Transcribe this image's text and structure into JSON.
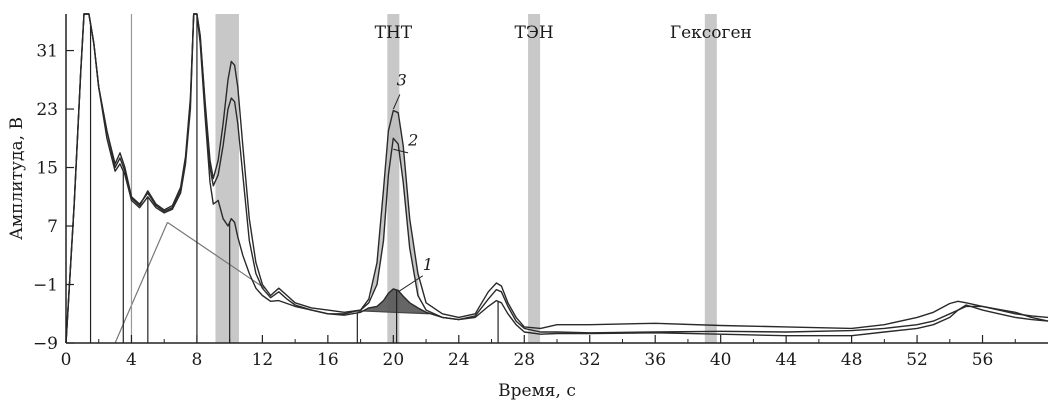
{
  "chart_data": {
    "type": "line",
    "title": "",
    "xlabel": "Время, с",
    "ylabel": "Амплитуда, В",
    "xlim": [
      0,
      60
    ],
    "ylim": [
      -9,
      36
    ],
    "x_ticks": [
      0,
      4,
      8,
      12,
      16,
      20,
      24,
      28,
      32,
      36,
      40,
      44,
      48,
      52,
      56
    ],
    "x_tick_labels": [
      "0",
      "4",
      "8",
      "12",
      "16",
      "20",
      "24",
      "28",
      "32",
      "36",
      "40",
      "44",
      "48",
      "52",
      "56"
    ],
    "y_ticks": [
      -9,
      -1,
      7,
      15,
      23,
      31
    ],
    "y_tick_labels": [
      "−9",
      "−1",
      "7",
      "15",
      "23",
      "31"
    ],
    "grid": false,
    "colors": {
      "curve": "#2a2a2a",
      "band": "#c8c8c8",
      "fill": "#bdbdbd",
      "fill_dark": "#555555",
      "marker": "#999999"
    },
    "bands": [
      {
        "label": "",
        "x": 9.5
      },
      {
        "label": "",
        "x": 10.2
      },
      {
        "label": "ТНТ",
        "x": 20.0
      },
      {
        "label": "ТЭН",
        "x": 28.6
      },
      {
        "label": "Гексоген",
        "x": 39.4
      }
    ],
    "markers_dark": [
      1.5,
      3.5,
      5.0,
      8.0,
      10.0,
      17.8,
      20.2,
      26.4
    ],
    "markers_light": [
      4.0
    ],
    "curve_labels": [
      {
        "text": "3",
        "x": 20.2,
        "y": 26.2
      },
      {
        "text": "2",
        "x": 20.9,
        "y": 18.0
      },
      {
        "text": "1",
        "x": 21.8,
        "y": 1.0
      }
    ],
    "series": [
      {
        "name": "3",
        "x": [
          0,
          0.5,
          0.9,
          1.1,
          1.4,
          1.7,
          2.0,
          2.5,
          3.0,
          3.3,
          3.6,
          4.0,
          4.5,
          5.0,
          5.5,
          6.0,
          6.5,
          7.0,
          7.3,
          7.6,
          7.8,
          8.0,
          8.2,
          8.5,
          8.8,
          9.0,
          9.3,
          9.6,
          9.9,
          10.1,
          10.3,
          10.5,
          10.8,
          11.2,
          11.6,
          12.0,
          12.5,
          13.0,
          13.5,
          14.0,
          15.0,
          16.0,
          17.0,
          18.0,
          18.5,
          19.0,
          19.4,
          19.7,
          20.0,
          20.3,
          20.6,
          21.0,
          21.5,
          22.0,
          23.0,
          24.0,
          25.0,
          25.8,
          26.3,
          26.6,
          27.0,
          27.5,
          28.0,
          29.0,
          30.0,
          32.0,
          36.0,
          40.0,
          44.0,
          48.0,
          50.0,
          52.0,
          53.0,
          54.0,
          54.5,
          55.0,
          56.0,
          57.0,
          58.0,
          59.0,
          60.0
        ],
        "y": [
          -9,
          10,
          28,
          36,
          36,
          32,
          26,
          20,
          15.5,
          17.0,
          15,
          11,
          10.0,
          11.5,
          9.8,
          9.0,
          9.5,
          12.0,
          16.0,
          24.0,
          36.0,
          36.0,
          33.0,
          24.0,
          16.0,
          13.5,
          16.0,
          21.0,
          27.0,
          29.5,
          29.0,
          26.0,
          18.0,
          8.0,
          2.0,
          -1.0,
          -2.5,
          -1.5,
          -2.5,
          -3.5,
          -4.2,
          -4.5,
          -4.8,
          -4.5,
          -3.0,
          2.0,
          12.0,
          20.0,
          22.8,
          22.5,
          18.0,
          8.0,
          0.5,
          -3.5,
          -5.0,
          -5.5,
          -5.0,
          -2.0,
          -0.8,
          -1.2,
          -3.5,
          -5.5,
          -6.8,
          -7.0,
          -6.5,
          -6.5,
          -6.3,
          -6.6,
          -6.8,
          -7.0,
          -6.5,
          -5.5,
          -4.8,
          -3.6,
          -3.3,
          -3.5,
          -4.0,
          -4.4,
          -4.8,
          -5.5,
          -6.0
        ]
      },
      {
        "name": "2",
        "x": [
          0,
          0.5,
          0.9,
          1.1,
          1.4,
          1.7,
          2.0,
          2.5,
          3.0,
          3.3,
          3.6,
          4.0,
          4.5,
          5.0,
          5.5,
          6.0,
          6.5,
          7.0,
          7.3,
          7.6,
          7.8,
          8.0,
          8.2,
          8.5,
          8.8,
          9.0,
          9.3,
          9.6,
          9.9,
          10.1,
          10.3,
          10.5,
          10.8,
          11.2,
          11.6,
          12.0,
          12.5,
          13.0,
          13.5,
          14.0,
          15.0,
          16.0,
          17.0,
          18.0,
          18.5,
          19.0,
          19.4,
          19.7,
          20.0,
          20.3,
          20.6,
          21.0,
          21.5,
          22.0,
          23.0,
          24.0,
          25.0,
          25.8,
          26.3,
          26.6,
          27.0,
          27.5,
          28.0,
          29.0,
          30.0,
          32.0,
          36.0,
          40.0,
          44.0,
          48.0,
          50.0,
          52.0,
          53.0,
          54.0,
          54.5,
          55.0,
          56.0,
          57.0,
          58.0,
          59.0,
          60.0
        ],
        "y": [
          -9,
          10,
          28,
          36,
          36,
          32,
          26,
          20,
          15.0,
          16.3,
          14.5,
          10.8,
          9.8,
          11.8,
          10.0,
          9.2,
          9.8,
          12.3,
          16.5,
          24.5,
          36.0,
          36.0,
          33.0,
          23.5,
          15.0,
          12.5,
          14.0,
          18.0,
          23.0,
          24.5,
          24.0,
          21.0,
          14.0,
          5.0,
          0.5,
          -1.5,
          -2.8,
          -2.0,
          -3.0,
          -3.8,
          -4.5,
          -5.0,
          -5.0,
          -4.5,
          -3.5,
          -1.0,
          5.0,
          14.0,
          19.0,
          18.2,
          13.0,
          4.0,
          -2.5,
          -4.5,
          -5.5,
          -5.8,
          -5.3,
          -3.0,
          -1.7,
          -2.0,
          -4.0,
          -6.0,
          -7.0,
          -7.5,
          -7.5,
          -7.6,
          -7.5,
          -7.4,
          -7.5,
          -7.3,
          -7.0,
          -6.5,
          -6.0,
          -5.0,
          -4.5,
          -4.0,
          -4.0,
          -4.5,
          -5.0,
          -5.3,
          -5.5
        ]
      },
      {
        "name": "1",
        "x": [
          0,
          0.5,
          0.9,
          1.1,
          1.4,
          1.7,
          2.0,
          2.5,
          3.0,
          3.3,
          3.6,
          4.0,
          4.5,
          5.0,
          5.5,
          6.0,
          6.5,
          7.0,
          7.3,
          7.6,
          7.8,
          8.0,
          8.2,
          8.5,
          8.8,
          9.0,
          9.3,
          9.6,
          9.9,
          10.1,
          10.3,
          10.5,
          10.8,
          11.2,
          11.6,
          12.0,
          12.5,
          13.0,
          13.5,
          14.0,
          15.0,
          16.0,
          17.0,
          18.0,
          18.5,
          19.0,
          19.4,
          19.7,
          20.0,
          20.3,
          20.6,
          21.0,
          21.5,
          22.0,
          23.0,
          24.0,
          25.0,
          25.8,
          26.3,
          26.6,
          27.0,
          27.5,
          28.0,
          29.0,
          30.0,
          32.0,
          36.0,
          40.0,
          44.0,
          48.0,
          50.0,
          52.0,
          53.0,
          54.0,
          54.5,
          55.0,
          56.0,
          57.0,
          58.0,
          59.0,
          60.0
        ],
        "y": [
          -9,
          10,
          28,
          36,
          36,
          32,
          26,
          19,
          14.5,
          15.5,
          14.0,
          10.5,
          9.5,
          11.0,
          9.5,
          8.8,
          9.3,
          11.5,
          15.5,
          23.0,
          36.0,
          36.0,
          32.0,
          22.0,
          13.0,
          10.0,
          10.5,
          8.0,
          7.0,
          8.0,
          7.5,
          5.5,
          3.0,
          0.5,
          -1.5,
          -2.5,
          -3.3,
          -3.2,
          -3.6,
          -4.0,
          -4.5,
          -5.0,
          -5.2,
          -4.8,
          -4.2,
          -4.0,
          -3.2,
          -2.2,
          -1.6,
          -1.8,
          -2.6,
          -3.5,
          -4.2,
          -4.8,
          -5.5,
          -5.8,
          -5.5,
          -4.0,
          -3.2,
          -3.5,
          -5.0,
          -6.5,
          -7.5,
          -7.8,
          -7.7,
          -7.7,
          -7.6,
          -7.8,
          -8.0,
          -8.0,
          -7.5,
          -7.0,
          -6.5,
          -5.5,
          -4.5,
          -3.8,
          -4.5,
          -5.0,
          -5.5,
          -5.8,
          -6.0
        ]
      }
    ]
  }
}
